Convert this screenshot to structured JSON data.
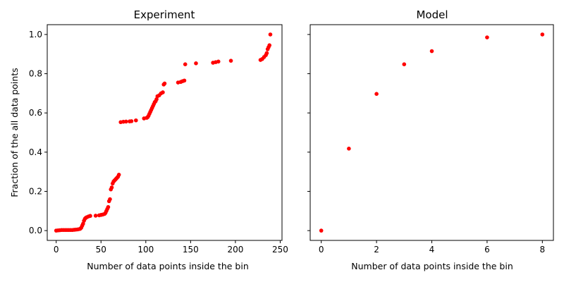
{
  "shared": {
    "ylabel": "Fraction of the all data points",
    "ylim": [
      -0.05,
      1.05
    ],
    "yticks": [
      0.0,
      0.2,
      0.4,
      0.6,
      0.8,
      1.0
    ],
    "ytick_labels": [
      "0.0",
      "0.2",
      "0.4",
      "0.6",
      "0.8",
      "1.0"
    ],
    "marker_color": "#ff0000"
  },
  "chart_data": [
    {
      "type": "scatter",
      "title": "Experiment",
      "xlabel": "Number of data points inside the bin",
      "ylabel": "Fraction of the all data points",
      "xlim": [
        -10,
        252
      ],
      "xticks": [
        0,
        50,
        100,
        150,
        200,
        250
      ],
      "xtick_labels": [
        "0",
        "50",
        "100",
        "150",
        "200",
        "250"
      ],
      "ylim": [
        -0.05,
        1.05
      ],
      "grid": false,
      "series": [
        {
          "color": "#ff0000",
          "x": [
            0,
            2,
            4,
            6,
            8,
            10,
            12,
            14,
            16,
            18,
            20,
            22,
            24,
            26,
            27,
            28,
            29,
            30,
            31,
            32,
            33,
            34,
            36,
            38,
            44,
            48,
            50,
            52,
            54,
            55,
            56,
            57,
            58,
            59,
            60,
            61,
            62,
            63,
            64,
            65,
            66,
            67,
            68,
            69,
            70,
            72,
            75,
            78,
            82,
            84,
            89,
            98,
            101,
            102,
            103,
            104,
            105,
            106,
            107,
            108,
            109,
            110,
            111,
            112,
            113,
            115,
            117,
            119,
            120,
            121,
            136,
            139,
            141,
            143,
            144,
            156,
            175,
            178,
            181,
            195,
            228,
            230,
            232,
            234,
            235,
            236,
            237,
            238,
            239
          ],
          "y": [
            0.0,
            0.001,
            0.002,
            0.003,
            0.003,
            0.003,
            0.003,
            0.003,
            0.003,
            0.003,
            0.004,
            0.005,
            0.006,
            0.008,
            0.01,
            0.015,
            0.025,
            0.035,
            0.05,
            0.06,
            0.065,
            0.068,
            0.072,
            0.075,
            0.076,
            0.078,
            0.08,
            0.082,
            0.085,
            0.09,
            0.1,
            0.11,
            0.12,
            0.15,
            0.16,
            0.21,
            0.22,
            0.24,
            0.25,
            0.255,
            0.26,
            0.265,
            0.27,
            0.275,
            0.285,
            0.553,
            0.555,
            0.556,
            0.557,
            0.558,
            0.562,
            0.572,
            0.575,
            0.578,
            0.585,
            0.595,
            0.605,
            0.615,
            0.625,
            0.635,
            0.645,
            0.655,
            0.66,
            0.67,
            0.685,
            0.69,
            0.7,
            0.705,
            0.745,
            0.75,
            0.755,
            0.758,
            0.762,
            0.765,
            0.848,
            0.853,
            0.856,
            0.859,
            0.862,
            0.866,
            0.87,
            0.875,
            0.885,
            0.895,
            0.905,
            0.925,
            0.935,
            0.945,
            1.0
          ]
        }
      ]
    },
    {
      "type": "scatter",
      "title": "Model",
      "xlabel": "Number of data points inside the bin",
      "xlim": [
        -0.4,
        8.4
      ],
      "xticks": [
        0,
        2,
        4,
        6,
        8
      ],
      "xtick_labels": [
        "0",
        "2",
        "4",
        "6",
        "8"
      ],
      "ylim": [
        -0.05,
        1.05
      ],
      "grid": false,
      "series": [
        {
          "color": "#ff0000",
          "x": [
            0,
            1,
            2,
            3,
            4,
            6,
            8
          ],
          "y": [
            0.0,
            0.418,
            0.697,
            0.848,
            0.915,
            0.985,
            1.0
          ]
        }
      ]
    }
  ]
}
